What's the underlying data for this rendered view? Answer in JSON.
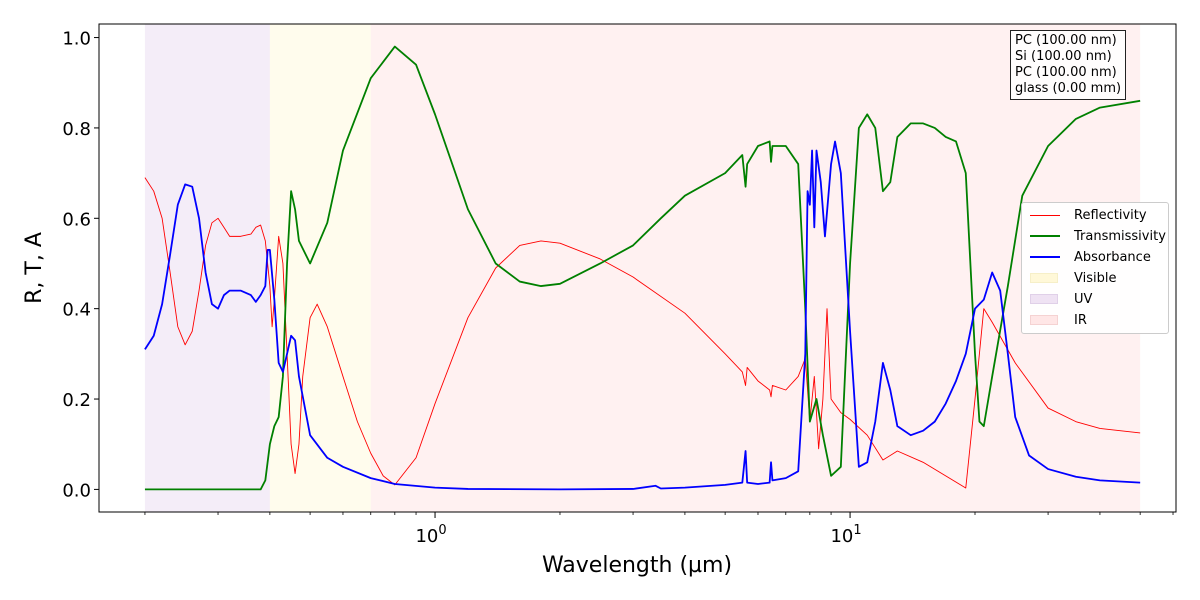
{
  "chart_data": {
    "type": "line",
    "xlabel": "Wavelength (µm)",
    "ylabel": "R, T, A",
    "xscale": "log",
    "xlim": [
      0.155,
      61
    ],
    "ylim": [
      -0.05,
      1.03
    ],
    "x_ticks": [
      {
        "value": 1,
        "base": "10",
        "exp": "0"
      },
      {
        "value": 10,
        "base": "10",
        "exp": "1"
      }
    ],
    "y_ticks": [
      "0.0",
      "0.2",
      "0.4",
      "0.6",
      "0.8",
      "1.0"
    ],
    "layer_stack": [
      "PC (100.00 nm)",
      "Si (100.00 nm)",
      "PC (100.00 nm)",
      "glass (0.00 mm)"
    ],
    "legend_position": "center-right",
    "regions": [
      {
        "name": "UV",
        "from": 0.2,
        "to": 0.4,
        "color": "#e6d8f0"
      },
      {
        "name": "Visible",
        "from": 0.4,
        "to": 0.7,
        "color": "#fff8d8"
      },
      {
        "name": "IR",
        "from": 0.7,
        "to": 50,
        "color": "#ffe0e0"
      }
    ],
    "series": [
      {
        "name": "Reflectivity",
        "color": "#ff0000",
        "width": 0.9,
        "points": [
          [
            0.2,
            0.69
          ],
          [
            0.21,
            0.66
          ],
          [
            0.22,
            0.6
          ],
          [
            0.23,
            0.48
          ],
          [
            0.24,
            0.36
          ],
          [
            0.25,
            0.32
          ],
          [
            0.26,
            0.35
          ],
          [
            0.27,
            0.44
          ],
          [
            0.28,
            0.54
          ],
          [
            0.29,
            0.59
          ],
          [
            0.3,
            0.6
          ],
          [
            0.31,
            0.58
          ],
          [
            0.32,
            0.56
          ],
          [
            0.34,
            0.56
          ],
          [
            0.36,
            0.565
          ],
          [
            0.37,
            0.58
          ],
          [
            0.38,
            0.585
          ],
          [
            0.39,
            0.55
          ],
          [
            0.4,
            0.45
          ],
          [
            0.405,
            0.36
          ],
          [
            0.41,
            0.42
          ],
          [
            0.42,
            0.56
          ],
          [
            0.43,
            0.5
          ],
          [
            0.44,
            0.3
          ],
          [
            0.45,
            0.1
          ],
          [
            0.46,
            0.035
          ],
          [
            0.47,
            0.1
          ],
          [
            0.48,
            0.25
          ],
          [
            0.5,
            0.38
          ],
          [
            0.52,
            0.41
          ],
          [
            0.55,
            0.36
          ],
          [
            0.6,
            0.25
          ],
          [
            0.65,
            0.15
          ],
          [
            0.7,
            0.08
          ],
          [
            0.75,
            0.03
          ],
          [
            0.8,
            0.01
          ],
          [
            0.9,
            0.07
          ],
          [
            1,
            0.19
          ],
          [
            1.2,
            0.38
          ],
          [
            1.4,
            0.49
          ],
          [
            1.6,
            0.54
          ],
          [
            1.8,
            0.55
          ],
          [
            2,
            0.545
          ],
          [
            2.5,
            0.51
          ],
          [
            3,
            0.47
          ],
          [
            4,
            0.39
          ],
          [
            5,
            0.3
          ],
          [
            5.5,
            0.26
          ],
          [
            5.6,
            0.23
          ],
          [
            5.65,
            0.27
          ],
          [
            6,
            0.24
          ],
          [
            6.4,
            0.22
          ],
          [
            6.45,
            0.205
          ],
          [
            6.5,
            0.23
          ],
          [
            7,
            0.22
          ],
          [
            7.5,
            0.25
          ],
          [
            7.8,
            0.29
          ],
          [
            8,
            0.15
          ],
          [
            8.2,
            0.25
          ],
          [
            8.4,
            0.09
          ],
          [
            8.6,
            0.2
          ],
          [
            8.8,
            0.4
          ],
          [
            9,
            0.2
          ],
          [
            9.5,
            0.17
          ],
          [
            10,
            0.155
          ],
          [
            11,
            0.12
          ],
          [
            12,
            0.065
          ],
          [
            13,
            0.085
          ],
          [
            15,
            0.06
          ],
          [
            17,
            0.03
          ],
          [
            19,
            0.003
          ],
          [
            20,
            0.2
          ],
          [
            21,
            0.4
          ],
          [
            22,
            0.37
          ],
          [
            25,
            0.28
          ],
          [
            30,
            0.18
          ],
          [
            35,
            0.15
          ],
          [
            40,
            0.135
          ],
          [
            50,
            0.125
          ]
        ]
      },
      {
        "name": "Transmissivity",
        "color": "#008000",
        "width": 1.8,
        "points": [
          [
            0.2,
            0
          ],
          [
            0.35,
            0
          ],
          [
            0.38,
            0
          ],
          [
            0.39,
            0.02
          ],
          [
            0.4,
            0.1
          ],
          [
            0.41,
            0.14
          ],
          [
            0.42,
            0.16
          ],
          [
            0.43,
            0.25
          ],
          [
            0.44,
            0.5
          ],
          [
            0.45,
            0.66
          ],
          [
            0.46,
            0.62
          ],
          [
            0.47,
            0.55
          ],
          [
            0.5,
            0.5
          ],
          [
            0.55,
            0.59
          ],
          [
            0.6,
            0.75
          ],
          [
            0.7,
            0.91
          ],
          [
            0.8,
            0.98
          ],
          [
            0.9,
            0.94
          ],
          [
            1,
            0.83
          ],
          [
            1.2,
            0.62
          ],
          [
            1.4,
            0.5
          ],
          [
            1.6,
            0.46
          ],
          [
            1.8,
            0.45
          ],
          [
            2,
            0.455
          ],
          [
            2.5,
            0.5
          ],
          [
            3,
            0.54
          ],
          [
            3.5,
            0.6
          ],
          [
            4,
            0.65
          ],
          [
            5,
            0.7
          ],
          [
            5.5,
            0.74
          ],
          [
            5.6,
            0.67
          ],
          [
            5.65,
            0.72
          ],
          [
            6,
            0.76
          ],
          [
            6.4,
            0.77
          ],
          [
            6.45,
            0.725
          ],
          [
            6.5,
            0.76
          ],
          [
            7,
            0.76
          ],
          [
            7.5,
            0.72
          ],
          [
            7.8,
            0.4
          ],
          [
            8,
            0.15
          ],
          [
            8.3,
            0.2
          ],
          [
            8.6,
            0.12
          ],
          [
            9,
            0.03
          ],
          [
            9.5,
            0.05
          ],
          [
            10,
            0.5
          ],
          [
            10.5,
            0.8
          ],
          [
            11,
            0.83
          ],
          [
            11.5,
            0.8
          ],
          [
            12,
            0.66
          ],
          [
            12.5,
            0.68
          ],
          [
            13,
            0.78
          ],
          [
            14,
            0.81
          ],
          [
            15,
            0.81
          ],
          [
            16,
            0.8
          ],
          [
            17,
            0.78
          ],
          [
            18,
            0.77
          ],
          [
            19,
            0.7
          ],
          [
            20,
            0.3
          ],
          [
            20.5,
            0.15
          ],
          [
            21,
            0.14
          ],
          [
            22,
            0.25
          ],
          [
            24,
            0.45
          ],
          [
            26,
            0.65
          ],
          [
            30,
            0.76
          ],
          [
            35,
            0.82
          ],
          [
            40,
            0.845
          ],
          [
            50,
            0.86
          ]
        ]
      },
      {
        "name": "Absorbance",
        "color": "#0000ff",
        "width": 1.8,
        "points": [
          [
            0.2,
            0.31
          ],
          [
            0.21,
            0.34
          ],
          [
            0.22,
            0.41
          ],
          [
            0.23,
            0.52
          ],
          [
            0.24,
            0.63
          ],
          [
            0.25,
            0.675
          ],
          [
            0.26,
            0.67
          ],
          [
            0.27,
            0.6
          ],
          [
            0.28,
            0.48
          ],
          [
            0.29,
            0.41
          ],
          [
            0.3,
            0.4
          ],
          [
            0.31,
            0.43
          ],
          [
            0.32,
            0.44
          ],
          [
            0.34,
            0.44
          ],
          [
            0.36,
            0.43
          ],
          [
            0.37,
            0.415
          ],
          [
            0.38,
            0.43
          ],
          [
            0.39,
            0.45
          ],
          [
            0.395,
            0.53
          ],
          [
            0.4,
            0.53
          ],
          [
            0.41,
            0.42
          ],
          [
            0.42,
            0.28
          ],
          [
            0.43,
            0.26
          ],
          [
            0.44,
            0.3
          ],
          [
            0.45,
            0.34
          ],
          [
            0.46,
            0.33
          ],
          [
            0.47,
            0.25
          ],
          [
            0.5,
            0.12
          ],
          [
            0.55,
            0.07
          ],
          [
            0.6,
            0.05
          ],
          [
            0.7,
            0.025
          ],
          [
            0.8,
            0.012
          ],
          [
            1,
            0.004
          ],
          [
            1.2,
            0.001
          ],
          [
            2,
            0
          ],
          [
            3,
            0.001
          ],
          [
            3.4,
            0.008
          ],
          [
            3.5,
            0.002
          ],
          [
            4,
            0.004
          ],
          [
            5,
            0.01
          ],
          [
            5.5,
            0.015
          ],
          [
            5.6,
            0.085
          ],
          [
            5.65,
            0.015
          ],
          [
            6,
            0.012
          ],
          [
            6.4,
            0.015
          ],
          [
            6.45,
            0.06
          ],
          [
            6.5,
            0.02
          ],
          [
            7,
            0.025
          ],
          [
            7.5,
            0.04
          ],
          [
            7.8,
            0.3
          ],
          [
            7.9,
            0.66
          ],
          [
            8,
            0.63
          ],
          [
            8.1,
            0.75
          ],
          [
            8.2,
            0.58
          ],
          [
            8.3,
            0.75
          ],
          [
            8.5,
            0.68
          ],
          [
            8.7,
            0.56
          ],
          [
            9,
            0.72
          ],
          [
            9.2,
            0.77
          ],
          [
            9.5,
            0.7
          ],
          [
            10,
            0.35
          ],
          [
            10.5,
            0.05
          ],
          [
            11,
            0.06
          ],
          [
            11.5,
            0.15
          ],
          [
            12,
            0.28
          ],
          [
            12.5,
            0.22
          ],
          [
            13,
            0.14
          ],
          [
            14,
            0.12
          ],
          [
            15,
            0.13
          ],
          [
            16,
            0.15
          ],
          [
            17,
            0.19
          ],
          [
            18,
            0.24
          ],
          [
            19,
            0.3
          ],
          [
            20,
            0.4
          ],
          [
            21,
            0.42
          ],
          [
            22,
            0.48
          ],
          [
            23,
            0.44
          ],
          [
            24,
            0.3
          ],
          [
            25,
            0.16
          ],
          [
            27,
            0.075
          ],
          [
            30,
            0.045
          ],
          [
            35,
            0.028
          ],
          [
            40,
            0.02
          ],
          [
            50,
            0.015
          ]
        ]
      }
    ]
  }
}
